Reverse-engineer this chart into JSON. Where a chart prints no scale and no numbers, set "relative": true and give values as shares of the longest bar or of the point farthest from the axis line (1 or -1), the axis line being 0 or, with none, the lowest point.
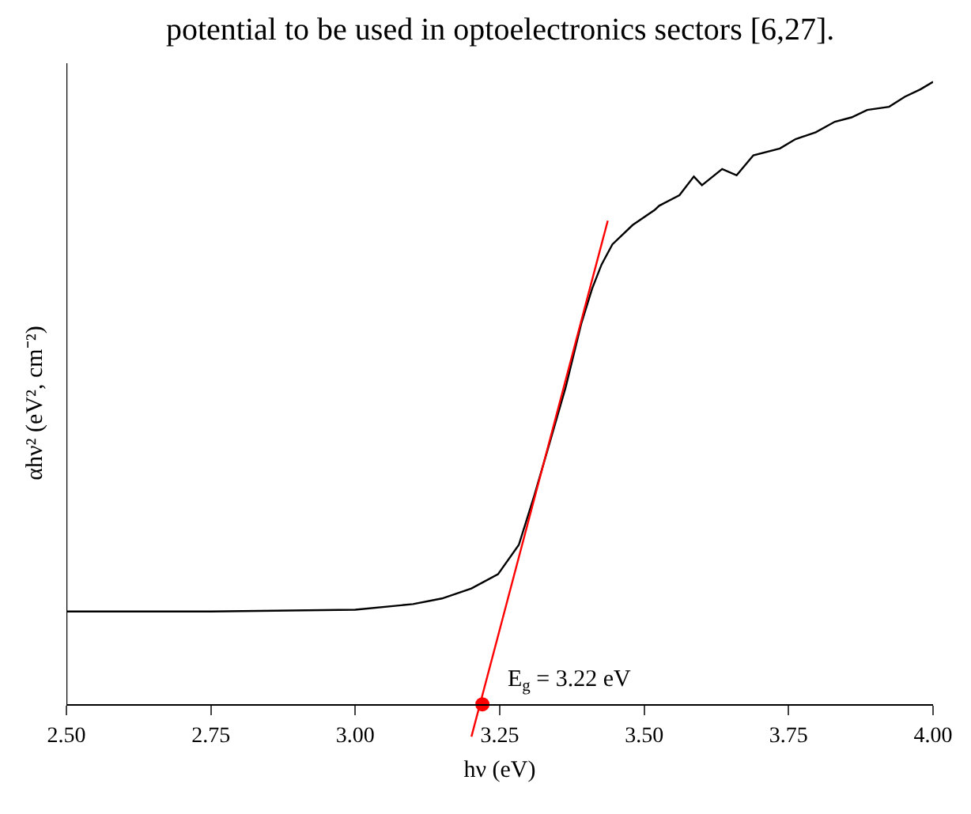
{
  "chart_data": {
    "type": "line",
    "relative": true,
    "xlabel": "hν (eV)",
    "ylabel": "αhν² (eV², cm⁻²)",
    "annotations": [
      "potential to be used in optoelectronics sectors [6,27].",
      {
        "text": "E$_{g}$ = 3.22 eV",
        "x": 3.22,
        "y": 0
      }
    ],
    "xlim": [
      2.5,
      4.0
    ],
    "xticks": [
      {
        "value": 2.5,
        "label": "2.50"
      },
      {
        "value": 2.75,
        "label": "2.75"
      },
      {
        "value": 3.0,
        "label": "3.00"
      },
      {
        "value": 3.25,
        "label": "3.25"
      },
      {
        "value": 3.5,
        "label": "3.50"
      },
      {
        "value": 3.75,
        "label": "3.75"
      },
      {
        "value": 4.0,
        "label": "4.00"
      }
    ],
    "series": [
      {
        "color": "#000000",
        "marker": "none",
        "x": [
          2.5,
          2.75,
          3.0,
          3.1,
          3.15,
          3.201,
          3.247,
          3.283,
          3.31,
          3.337,
          3.364,
          3.391,
          3.41,
          3.426,
          3.445,
          3.48,
          3.518,
          3.526,
          3.561,
          3.586,
          3.6,
          3.635,
          3.66,
          3.689,
          3.735,
          3.762,
          3.797,
          3.83,
          3.859,
          3.886,
          3.924,
          3.951,
          3.978,
          4.0
        ],
        "values": [
          0.149,
          0.149,
          0.152,
          0.161,
          0.17,
          0.186,
          0.209,
          0.256,
          0.336,
          0.422,
          0.509,
          0.611,
          0.668,
          0.706,
          0.739,
          0.77,
          0.794,
          0.801,
          0.818,
          0.848,
          0.834,
          0.86,
          0.85,
          0.882,
          0.893,
          0.908,
          0.919,
          0.936,
          0.943,
          0.955,
          0.96,
          0.976,
          0.988,
          1.0
        ]
      },
      {
        "color": "#ff0000",
        "marker": "none",
        "x": [
          3.201,
          3.437
        ],
        "values": [
          -0.052,
          0.777
        ]
      },
      {
        "type": "scatter",
        "color": "#ff0000",
        "marker": "circle",
        "x": [
          3.22
        ],
        "values": [
          0
        ]
      }
    ]
  }
}
